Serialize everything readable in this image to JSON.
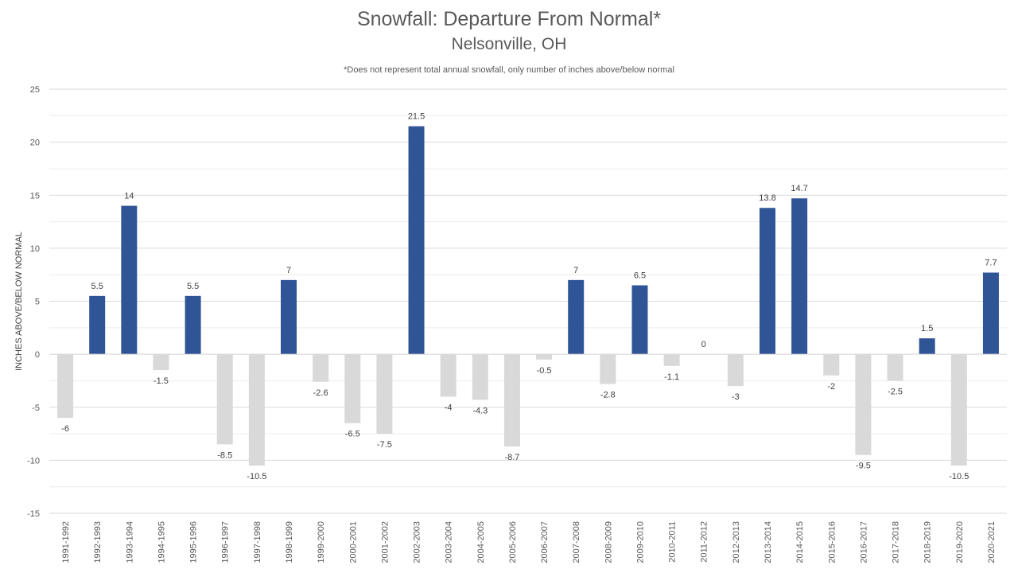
{
  "chart_data": {
    "type": "bar",
    "title": "Snowfall: Departure From Normal*",
    "subtitle": "Nelsonville, OH",
    "note": "*Does not represent  total annual snowfall, only number of inches above/below normal",
    "ylabel": "INCHES ABOVE/BELOW NORMAL",
    "xlabel": "",
    "ylim": [
      -15,
      25
    ],
    "yticks": [
      25,
      20,
      15,
      10,
      5,
      0,
      -5,
      -10,
      -15
    ],
    "grid": true,
    "legend": "none",
    "colors": {
      "positive": "#2f5597",
      "negative": "#d9d9d9",
      "grid": "#d9d9d9"
    },
    "categories": [
      "1991-1992",
      "1992-1993",
      "1993-1994",
      "1994-1995",
      "1995-1996",
      "1996-1997",
      "1997-1998",
      "1998-1999",
      "1999-2000",
      "2000-2001",
      "2001-2002",
      "2002-2003",
      "2003-2004",
      "2004-2005",
      "2005-2006",
      "2006-2007",
      "2007-2008",
      "2008-2009",
      "2009-2010",
      "2010-2011",
      "2011-2012",
      "2012-2013",
      "2013-2014",
      "2014-2015",
      "2015-2016",
      "2016-2017",
      "2017-2018",
      "2018-2019",
      "2019-2020",
      "2020-2021"
    ],
    "values": [
      -6,
      5.5,
      14,
      -1.5,
      5.5,
      -8.5,
      -10.5,
      7,
      -2.6,
      -6.5,
      -7.5,
      21.5,
      -4,
      -4.3,
      -8.7,
      -0.5,
      7,
      -2.8,
      6.5,
      -1.1,
      0,
      -3,
      13.8,
      14.7,
      -2,
      -9.5,
      -2.5,
      1.5,
      -10.5,
      7.7
    ]
  }
}
